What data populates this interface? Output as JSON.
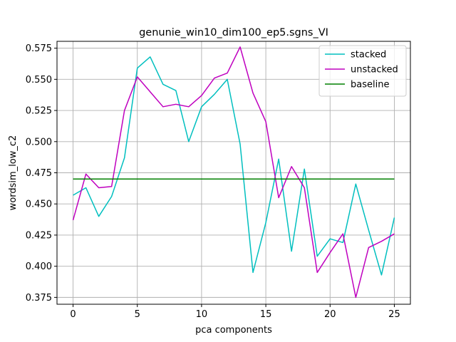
{
  "chart_data": {
    "type": "line",
    "title": "genunie_win10_dim100_ep5.sgns_VI",
    "xlabel": "pca components",
    "ylabel": "wordsim_low_c2",
    "xlim": [
      -1.25,
      26.25
    ],
    "ylim": [
      0.3695,
      0.5805
    ],
    "xticks": [
      0,
      5,
      10,
      15,
      20,
      25
    ],
    "xtick_labels": [
      "0",
      "5",
      "10",
      "15",
      "20",
      "25"
    ],
    "yticks": [
      0.375,
      0.4,
      0.425,
      0.45,
      0.475,
      0.5,
      0.525,
      0.55,
      0.575
    ],
    "ytick_labels": [
      "0.375",
      "0.400",
      "0.425",
      "0.450",
      "0.475",
      "0.500",
      "0.525",
      "0.550",
      "0.575"
    ],
    "grid": true,
    "legend_position": "top-right",
    "series": [
      {
        "name": "stacked",
        "color": "#00bfbf",
        "x": [
          0,
          1,
          2,
          3,
          4,
          5,
          6,
          7,
          8,
          9,
          10,
          11,
          12,
          13,
          14,
          15,
          16,
          17,
          18,
          19,
          20,
          21,
          22,
          23,
          24,
          25
        ],
        "y": [
          0.457,
          0.463,
          0.44,
          0.456,
          0.487,
          0.559,
          0.568,
          0.546,
          0.541,
          0.5,
          0.528,
          0.538,
          0.55,
          0.498,
          0.395,
          0.435,
          0.486,
          0.412,
          0.478,
          0.408,
          0.422,
          0.419,
          0.466,
          0.429,
          0.393,
          0.439
        ]
      },
      {
        "name": "unstacked",
        "color": "#bf00bf",
        "x": [
          0,
          1,
          2,
          3,
          4,
          5,
          6,
          7,
          8,
          9,
          10,
          11,
          12,
          13,
          14,
          15,
          16,
          17,
          18,
          19,
          20,
          21,
          22,
          23,
          24,
          25
        ],
        "y": [
          0.437,
          0.474,
          0.463,
          0.464,
          0.525,
          0.552,
          0.54,
          0.528,
          0.53,
          0.528,
          0.537,
          0.551,
          0.555,
          0.576,
          0.539,
          0.516,
          0.455,
          0.48,
          0.463,
          0.395,
          0.411,
          0.426,
          0.375,
          0.415,
          0.42,
          0.426
        ]
      },
      {
        "name": "baseline",
        "color": "#008000",
        "x": [
          0,
          25
        ],
        "y": [
          0.47,
          0.47
        ]
      }
    ]
  }
}
